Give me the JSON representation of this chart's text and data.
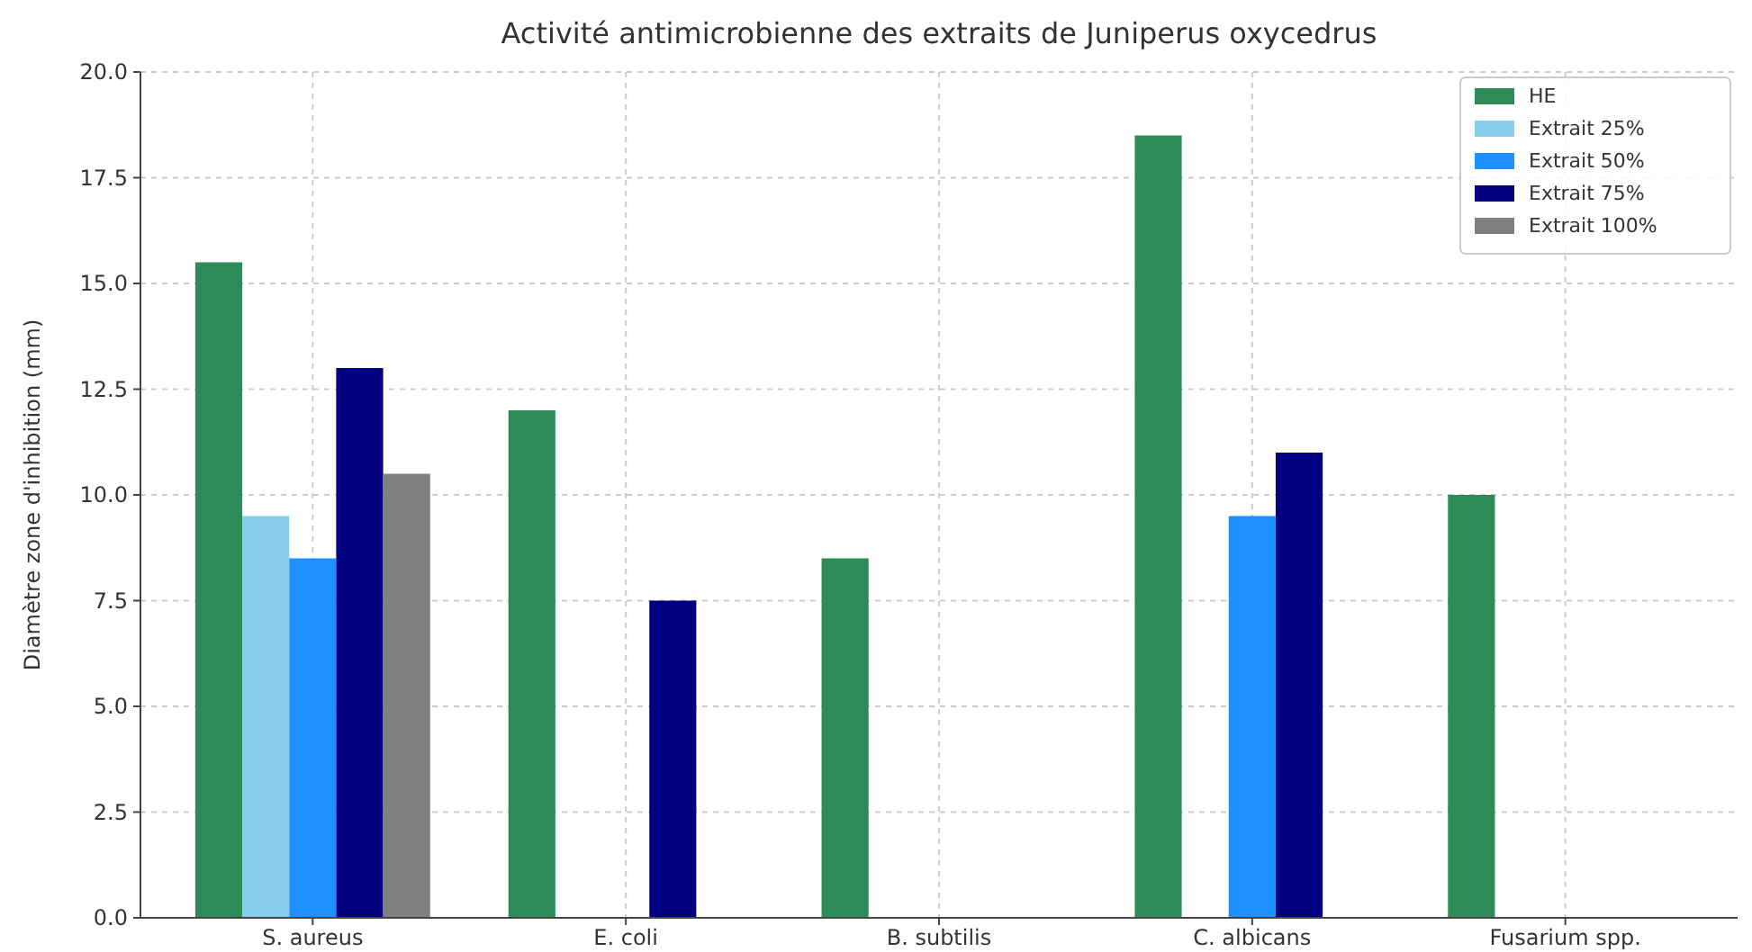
{
  "chart_data": {
    "type": "bar",
    "title": "Activité antimicrobienne des extraits de Juniperus oxycedrus",
    "ylabel": "Diamètre zone d'inhibition (mm)",
    "categories": [
      "S. aureus",
      "E. coli",
      "B. subtilis",
      "C. albicans",
      "Fusarium spp."
    ],
    "series": [
      {
        "name": "HE",
        "color": "#2e8b57",
        "values": [
          15.5,
          12,
          8.5,
          18.5,
          10
        ]
      },
      {
        "name": "Extrait 25%",
        "color": "#87ceeb",
        "values": [
          9.5,
          null,
          null,
          null,
          null
        ]
      },
      {
        "name": "Extrait 50%",
        "color": "#1e90ff",
        "values": [
          8.5,
          null,
          null,
          9.5,
          null
        ]
      },
      {
        "name": "Extrait 75%",
        "color": "#000080",
        "values": [
          13,
          7.5,
          null,
          11,
          null
        ]
      },
      {
        "name": "Extrait 100%",
        "color": "#808080",
        "values": [
          10.5,
          null,
          null,
          null,
          null
        ]
      }
    ],
    "ylim": [
      0,
      20
    ],
    "yticks": [
      {
        "value": 0,
        "label": "0.0"
      },
      {
        "value": 2.5,
        "label": "2.5"
      },
      {
        "value": 5,
        "label": "5.0"
      },
      {
        "value": 7.5,
        "label": "7.5"
      },
      {
        "value": 10,
        "label": "10.0"
      },
      {
        "value": 12.5,
        "label": "12.5"
      },
      {
        "value": 15,
        "label": "15.0"
      },
      {
        "value": 17.5,
        "label": "17.5"
      },
      {
        "value": 20,
        "label": "20.0"
      }
    ],
    "grid": true,
    "legend": "top right"
  }
}
